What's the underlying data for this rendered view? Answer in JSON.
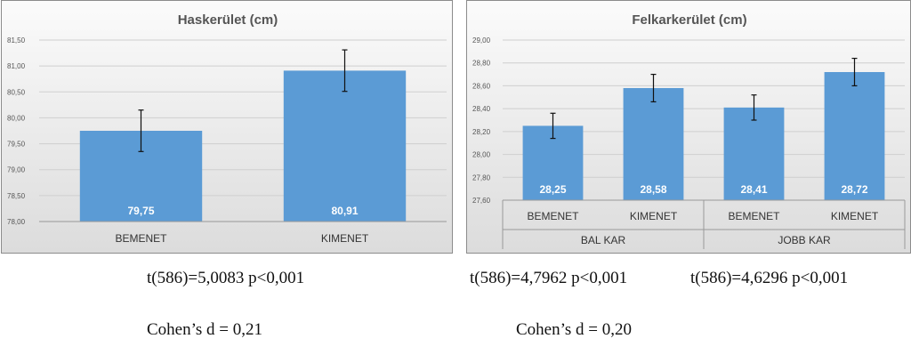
{
  "chart_data": [
    {
      "type": "bar",
      "title": "Haskerület (cm)",
      "categories": [
        "BEMENET",
        "KIMENET"
      ],
      "values": [
        79.75,
        80.91
      ],
      "value_labels": [
        "79,75",
        "80,91"
      ],
      "error": [
        0.4,
        0.4
      ],
      "ylim": [
        78.0,
        81.5
      ],
      "yticks": [
        "78,00",
        "78,50",
        "79,00",
        "79,50",
        "80,00",
        "80,50",
        "81,00",
        "81,50"
      ],
      "grid": true,
      "bar_color": "#5b9bd5"
    },
    {
      "type": "bar",
      "title": "Felkarkerület (cm)",
      "categories": [
        "BEMENET",
        "KIMENET",
        "BEMENET",
        "KIMENET"
      ],
      "groups": [
        "BAL KAR",
        "JOBB KAR"
      ],
      "values": [
        28.25,
        28.58,
        28.41,
        28.72
      ],
      "value_labels": [
        "28,25",
        "28,58",
        "28,41",
        "28,72"
      ],
      "error": [
        0.11,
        0.12,
        0.11,
        0.12
      ],
      "ylim": [
        27.6,
        29.0
      ],
      "yticks": [
        "27,60",
        "27,80",
        "28,00",
        "28,20",
        "28,40",
        "28,60",
        "28,80",
        "29,00"
      ],
      "grid": true,
      "bar_color": "#5b9bd5"
    }
  ],
  "captions": {
    "left_stat": "t(586)=5,0083 p<0,001",
    "left_effect": "Cohen’s d = 0,21",
    "right_stat_1": "t(586)=4,7962 p<0,001",
    "right_stat_2": "t(586)=4,6296 p<0,001",
    "right_effect": "Cohen’s d = 0,20"
  }
}
